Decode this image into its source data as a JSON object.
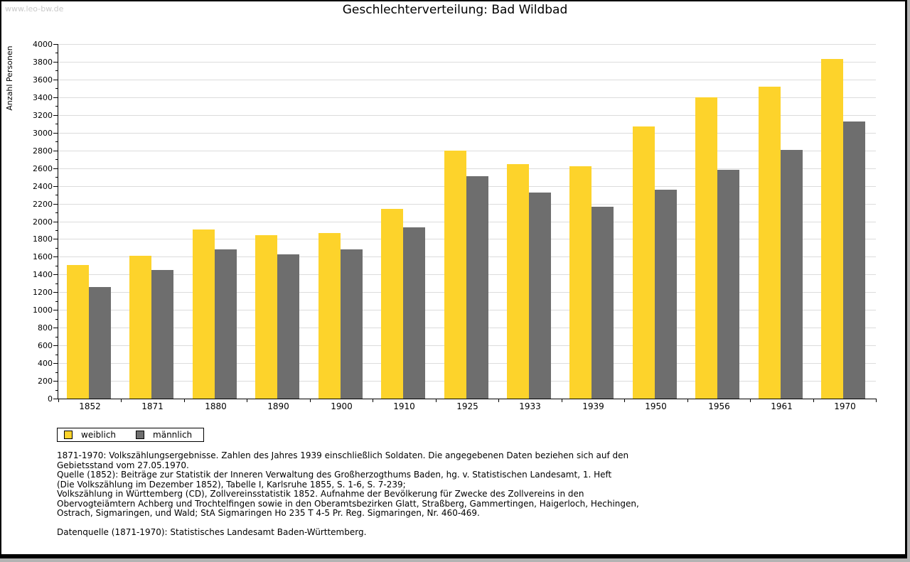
{
  "watermark": "www.leo-bw.de",
  "chart_data": {
    "type": "bar",
    "title": "Geschlechterverteilung: Bad Wildbad",
    "xlabel": "",
    "ylabel": "Anzahl Personen",
    "ylim": [
      0,
      4000
    ],
    "ytick_step": 200,
    "minor_tick_step": 100,
    "grid": true,
    "legend_position": "bottom-left",
    "yticks": [
      0,
      200,
      400,
      600,
      800,
      1000,
      1200,
      1400,
      1600,
      1800,
      2000,
      2200,
      2400,
      2600,
      2800,
      3000,
      3200,
      3400,
      3600,
      3800,
      4000
    ],
    "categories": [
      "1852",
      "1871",
      "1880",
      "1890",
      "1900",
      "1910",
      "1925",
      "1933",
      "1939",
      "1950",
      "1956",
      "1961",
      "1970"
    ],
    "series": [
      {
        "name": "weiblich",
        "color": "#fdd32b",
        "values": [
          1505,
          1610,
          1905,
          1840,
          1865,
          2140,
          2800,
          2645,
          2620,
          3070,
          3400,
          3520,
          3830
        ]
      },
      {
        "name": "männlich",
        "color": "#6e6e6e",
        "values": [
          1260,
          1450,
          1680,
          1630,
          1685,
          1935,
          2510,
          2325,
          2165,
          2360,
          2585,
          2805,
          3130
        ]
      }
    ]
  },
  "footer": {
    "source_lines": [
      "1871-1970: Volkszählungsergebnisse. Zahlen des Jahres 1939 einschließlich Soldaten. Die angegebenen Daten beziehen sich auf den",
      "Gebietsstand vom 27.05.1970.",
      "Quelle (1852): Beiträge zur Statistik der Inneren Verwaltung des Großherzogthums Baden, hg. v. Statistischen Landesamt, 1. Heft",
      "(Die Volkszählung im Dezember 1852), Tabelle I, Karlsruhe 1855, S. 1-6, S. 7-239;",
      "Volkszählung in Württemberg (CD), Zollvereinsstatistik 1852. Aufnahme der Bevölkerung für Zwecke des Zollvereins in den",
      "Obervogteiämtern Achberg und Trochtelfingen sowie in den Oberamtsbezirken Glatt, Straßberg, Gammertingen, Haigerloch, Hechingen,",
      "Ostrach, Sigmaringen, und Wald; StA Sigmaringen Ho 235 T 4-5 Pr. Reg. Sigmaringen, Nr. 460-469."
    ],
    "datasource": "Datenquelle (1871-1970): Statistisches Landesamt Baden-Württemberg."
  }
}
